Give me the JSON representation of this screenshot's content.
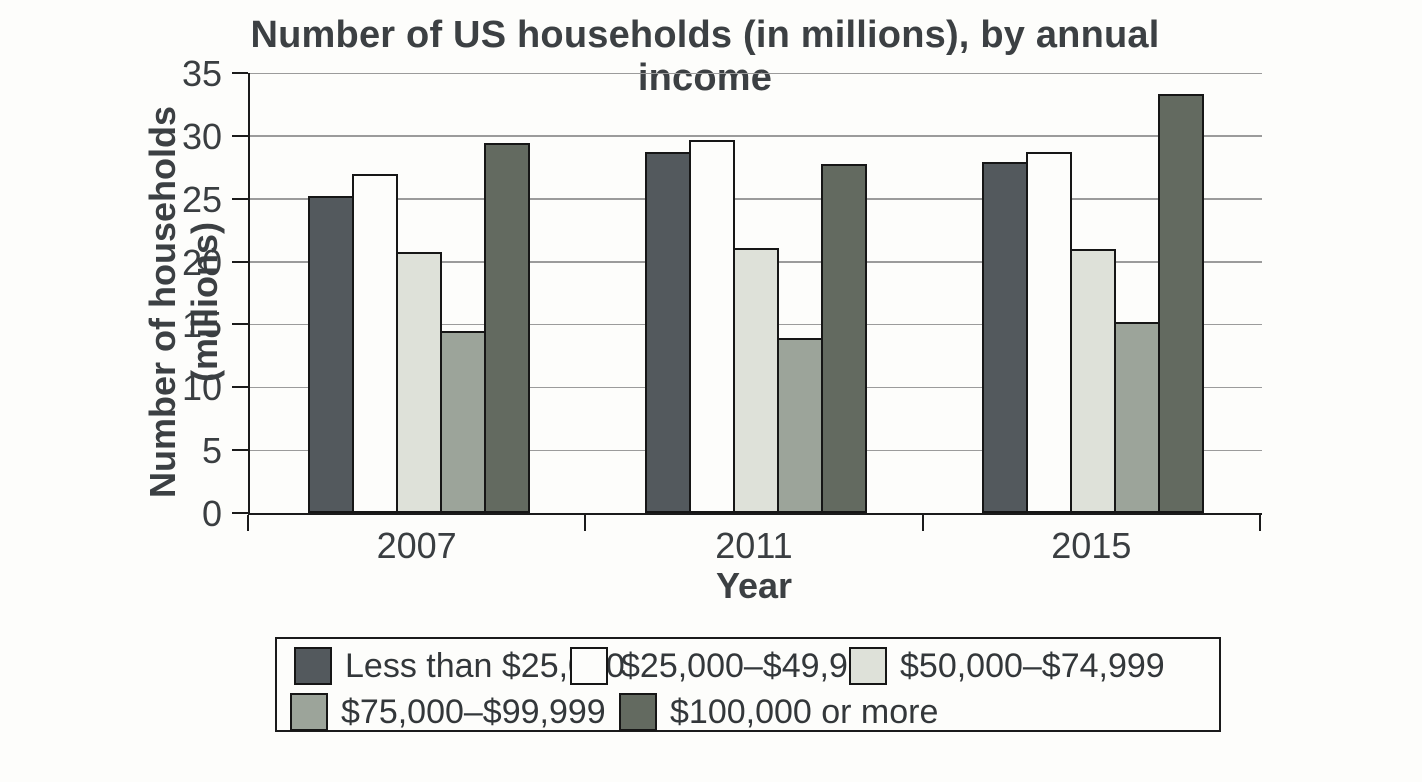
{
  "chart_data": {
    "type": "bar",
    "title": "Number of US households (in millions), by annual income",
    "xlabel": "Year",
    "ylabel": "Number of households (millions)",
    "categories": [
      "2007",
      "2011",
      "2015"
    ],
    "series": [
      {
        "name": "Less than $25,000",
        "color": "#53595d",
        "values": [
          25.2,
          28.7,
          27.9
        ]
      },
      {
        "name": "$25,000–$49,999",
        "color": "#fdfdfb",
        "values": [
          27.0,
          29.7,
          28.7
        ]
      },
      {
        "name": "$50,000–$74,999",
        "color": "#dee1d9",
        "values": [
          20.8,
          21.1,
          21.0
        ]
      },
      {
        "name": "$75,000–$99,999",
        "color": "#9ca49a",
        "values": [
          14.5,
          13.9,
          15.2
        ]
      },
      {
        "name": "$100,000 or more",
        "color": "#636a60",
        "values": [
          29.4,
          27.8,
          33.3
        ]
      }
    ],
    "ylim": [
      0,
      35
    ],
    "ytick_step": 5,
    "grid": "horizontal",
    "legend_position": "bottom",
    "legend_rows": [
      [
        0,
        1,
        2
      ],
      [
        3,
        4
      ]
    ],
    "axis_color": "#1b1b1b",
    "gridline_color": "#9b9b9b"
  }
}
